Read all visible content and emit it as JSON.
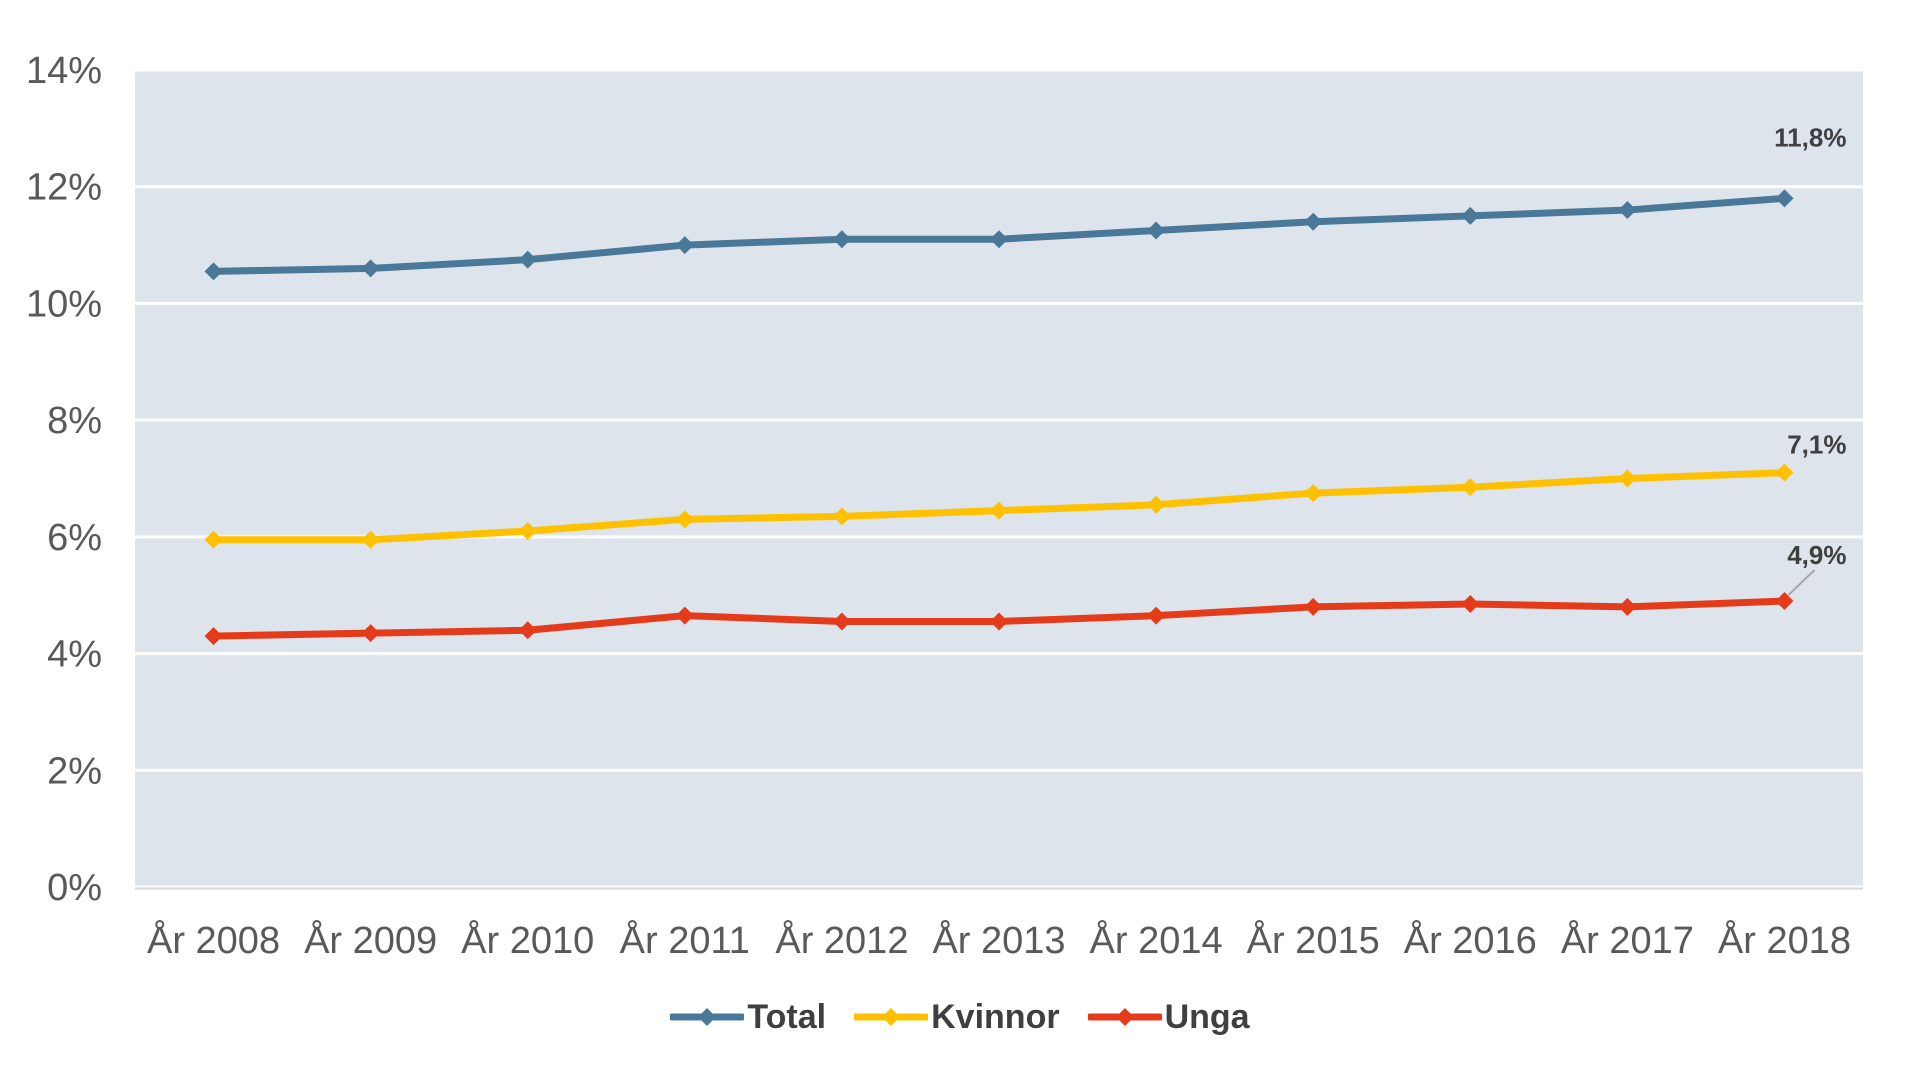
{
  "chart_data": {
    "type": "line",
    "title": "",
    "x_categories": [
      "År 2008",
      "År 2009",
      "År 2010",
      "År 2011",
      "År 2012",
      "År 2013",
      "År 2014",
      "År 2015",
      "År 2016",
      "År 2017",
      "År 2018"
    ],
    "y_ticks": [
      {
        "label": "0%",
        "value": 0
      },
      {
        "label": "2%",
        "value": 2
      },
      {
        "label": "4%",
        "value": 4
      },
      {
        "label": "6%",
        "value": 6
      },
      {
        "label": "8%",
        "value": 8
      },
      {
        "label": "10%",
        "value": 10
      },
      {
        "label": "12%",
        "value": 12
      },
      {
        "label": "14%",
        "value": 14
      }
    ],
    "ylim": [
      0,
      14
    ],
    "grid": true,
    "legend_position": "bottom",
    "colors": {
      "plot_background": "#dde4ec",
      "gridline": "#ffffff",
      "axis_line": "#d6d6d6",
      "axis_text": "#595959",
      "label_text": "#3f3f3f",
      "leader_line": "#a6a6a6"
    },
    "series": [
      {
        "name": "Total",
        "color": "#4a7899",
        "values": [
          10.55,
          10.6,
          10.75,
          11.0,
          11.1,
          11.1,
          11.25,
          11.4,
          11.5,
          11.6,
          11.8
        ],
        "end_label": "11,8%",
        "end_label_leader": false
      },
      {
        "name": "Kvinnor",
        "color": "#ffc000",
        "values": [
          5.95,
          5.95,
          6.1,
          6.3,
          6.35,
          6.45,
          6.55,
          6.75,
          6.85,
          7.0,
          7.1
        ],
        "end_label": "7,1%",
        "end_label_leader": false
      },
      {
        "name": "Unga",
        "color": "#e43c1b",
        "values": [
          4.3,
          4.35,
          4.4,
          4.65,
          4.55,
          4.55,
          4.65,
          4.8,
          4.85,
          4.8,
          4.9
        ],
        "end_label": "4,9%",
        "end_label_leader": true
      }
    ]
  }
}
